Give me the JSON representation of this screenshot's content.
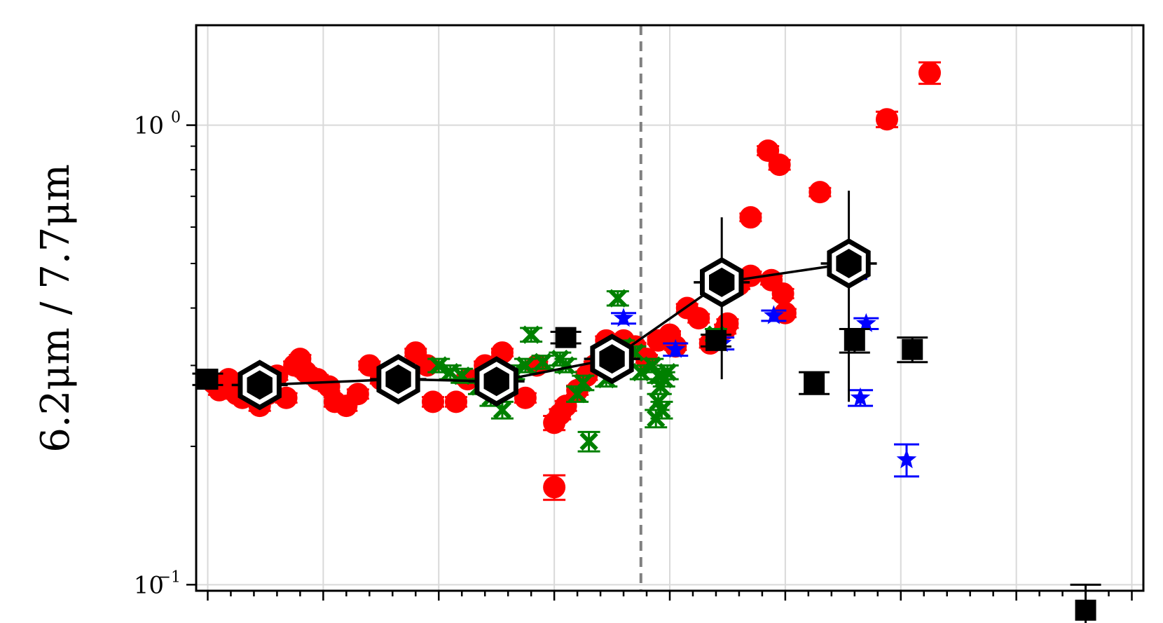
{
  "chart_data": {
    "type": "scatter",
    "title": "",
    "xlabel": "",
    "ylabel": "6.2μm / 7.7μm",
    "yscale": "log",
    "ylim": [
      0.097,
      1.65
    ],
    "xlim": [
      -0.1,
      8.1
    ],
    "grid": true,
    "legend": "none",
    "y_ticks": [
      {
        "value": 1.0,
        "base": "10",
        "exp": "0"
      },
      {
        "value": 0.1,
        "base": "10",
        "exp": "−1"
      }
    ],
    "x_major_ticks": [
      0,
      1,
      2,
      3,
      4,
      5,
      6,
      7,
      8
    ],
    "vertical_line": {
      "x": 3.75,
      "color": "#808080",
      "style": "dashed"
    },
    "colors": {
      "red": "#ff0000",
      "green": "#008000",
      "blue": "#0000ff",
      "black": "#000000"
    },
    "series": [
      {
        "marker": "circle",
        "color": "#ff0000",
        "points": [
          {
            "x": 0.05,
            "y": 0.275,
            "err": 0.006
          },
          {
            "x": 0.1,
            "y": 0.265,
            "err": 0.006
          },
          {
            "x": 0.18,
            "y": 0.28,
            "err": 0.006
          },
          {
            "x": 0.25,
            "y": 0.26,
            "err": 0.006
          },
          {
            "x": 0.3,
            "y": 0.255,
            "err": 0.006
          },
          {
            "x": 0.38,
            "y": 0.27,
            "err": 0.006
          },
          {
            "x": 0.45,
            "y": 0.245,
            "err": 0.006
          },
          {
            "x": 0.52,
            "y": 0.26,
            "err": 0.006
          },
          {
            "x": 0.6,
            "y": 0.285,
            "err": 0.006
          },
          {
            "x": 0.68,
            "y": 0.255,
            "err": 0.006
          },
          {
            "x": 0.75,
            "y": 0.3,
            "err": 0.006
          },
          {
            "x": 0.8,
            "y": 0.31,
            "err": 0.006
          },
          {
            "x": 0.85,
            "y": 0.29,
            "err": 0.006
          },
          {
            "x": 0.95,
            "y": 0.28,
            "err": 0.006
          },
          {
            "x": 1.05,
            "y": 0.27,
            "err": 0.006
          },
          {
            "x": 1.1,
            "y": 0.25,
            "err": 0.006
          },
          {
            "x": 1.2,
            "y": 0.245,
            "err": 0.006
          },
          {
            "x": 1.3,
            "y": 0.26,
            "err": 0.006
          },
          {
            "x": 1.4,
            "y": 0.3,
            "err": 0.006
          },
          {
            "x": 1.5,
            "y": 0.28,
            "err": 0.006
          },
          {
            "x": 1.8,
            "y": 0.32,
            "err": 0.006
          },
          {
            "x": 1.9,
            "y": 0.3,
            "err": 0.006
          },
          {
            "x": 1.95,
            "y": 0.25,
            "err": 0.006
          },
          {
            "x": 2.15,
            "y": 0.25,
            "err": 0.006
          },
          {
            "x": 2.25,
            "y": 0.28,
            "err": 0.006
          },
          {
            "x": 2.4,
            "y": 0.3,
            "err": 0.006
          },
          {
            "x": 2.55,
            "y": 0.32,
            "err": 0.006
          },
          {
            "x": 2.75,
            "y": 0.255,
            "err": 0.006
          },
          {
            "x": 2.85,
            "y": 0.3,
            "err": 0.006
          },
          {
            "x": 3.0,
            "y": 0.225,
            "err": 0.008
          },
          {
            "x": 3.05,
            "y": 0.235,
            "err": 0.006
          },
          {
            "x": 3.1,
            "y": 0.245,
            "err": 0.006
          },
          {
            "x": 3.2,
            "y": 0.265,
            "err": 0.006
          },
          {
            "x": 3.28,
            "y": 0.285,
            "err": 0.006
          },
          {
            "x": 3.35,
            "y": 0.3,
            "err": 0.006
          },
          {
            "x": 3.45,
            "y": 0.34,
            "err": 0.007
          },
          {
            "x": 3.55,
            "y": 0.32,
            "err": 0.006
          },
          {
            "x": 3.6,
            "y": 0.34,
            "err": 0.006
          },
          {
            "x": 3.7,
            "y": 0.33,
            "err": 0.006
          },
          {
            "x": 3.8,
            "y": 0.31,
            "err": 0.006
          },
          {
            "x": 3.9,
            "y": 0.34,
            "err": 0.006
          },
          {
            "x": 4.0,
            "y": 0.35,
            "err": 0.006
          },
          {
            "x": 4.05,
            "y": 0.33,
            "err": 0.006
          },
          {
            "x": 4.15,
            "y": 0.4,
            "err": 0.008
          },
          {
            "x": 4.25,
            "y": 0.38,
            "err": 0.008
          },
          {
            "x": 4.35,
            "y": 0.335,
            "err": 0.007
          },
          {
            "x": 4.48,
            "y": 0.36,
            "err": 0.008
          },
          {
            "x": 4.5,
            "y": 0.37,
            "err": 0.008
          },
          {
            "x": 4.6,
            "y": 0.45,
            "err": 0.01
          },
          {
            "x": 4.7,
            "y": 0.63,
            "err": 0.012
          },
          {
            "x": 4.7,
            "y": 0.47,
            "err": 0.01
          },
          {
            "x": 4.85,
            "y": 0.88,
            "err": 0.02
          },
          {
            "x": 4.88,
            "y": 0.46,
            "err": 0.01
          },
          {
            "x": 4.95,
            "y": 0.82,
            "err": 0.02
          },
          {
            "x": 4.98,
            "y": 0.43,
            "err": 0.01
          },
          {
            "x": 5.3,
            "y": 0.715,
            "err": 0.015
          },
          {
            "x": 5.0,
            "y": 0.39,
            "err": 0.008
          },
          {
            "x": 3.0,
            "y": 0.163,
            "err": 0.01
          },
          {
            "x": 5.88,
            "y": 1.03,
            "err": 0.04
          },
          {
            "x": 6.25,
            "y": 1.3,
            "err": 0.07
          }
        ]
      },
      {
        "marker": "x",
        "color": "#008000",
        "points": [
          {
            "x": 2.0,
            "y": 0.3,
            "err": 0.01
          },
          {
            "x": 2.1,
            "y": 0.29,
            "err": 0.01
          },
          {
            "x": 2.2,
            "y": 0.285,
            "err": 0.01
          },
          {
            "x": 2.35,
            "y": 0.27,
            "err": 0.01
          },
          {
            "x": 2.45,
            "y": 0.255,
            "err": 0.01
          },
          {
            "x": 2.55,
            "y": 0.24,
            "err": 0.01
          },
          {
            "x": 2.65,
            "y": 0.29,
            "err": 0.01
          },
          {
            "x": 2.75,
            "y": 0.3,
            "err": 0.01
          },
          {
            "x": 2.8,
            "y": 0.35,
            "err": 0.012
          },
          {
            "x": 2.9,
            "y": 0.305,
            "err": 0.01
          },
          {
            "x": 3.05,
            "y": 0.31,
            "err": 0.01
          },
          {
            "x": 3.1,
            "y": 0.3,
            "err": 0.01
          },
          {
            "x": 3.2,
            "y": 0.26,
            "err": 0.01
          },
          {
            "x": 3.25,
            "y": 0.275,
            "err": 0.01
          },
          {
            "x": 3.3,
            "y": 0.205,
            "err": 0.01
          },
          {
            "x": 3.45,
            "y": 0.28,
            "err": 0.01
          },
          {
            "x": 3.55,
            "y": 0.42,
            "err": 0.015
          },
          {
            "x": 3.6,
            "y": 0.33,
            "err": 0.01
          },
          {
            "x": 3.7,
            "y": 0.32,
            "err": 0.01
          },
          {
            "x": 3.75,
            "y": 0.29,
            "err": 0.01
          },
          {
            "x": 3.85,
            "y": 0.3,
            "err": 0.01
          },
          {
            "x": 3.9,
            "y": 0.285,
            "err": 0.01
          },
          {
            "x": 3.95,
            "y": 0.28,
            "err": 0.01
          },
          {
            "x": 3.92,
            "y": 0.27,
            "err": 0.01
          },
          {
            "x": 3.9,
            "y": 0.25,
            "err": 0.01
          },
          {
            "x": 3.93,
            "y": 0.24,
            "err": 0.01
          },
          {
            "x": 3.98,
            "y": 0.29,
            "err": 0.01
          },
          {
            "x": 3.88,
            "y": 0.23,
            "err": 0.01
          },
          {
            "x": 4.4,
            "y": 0.35,
            "err": 0.01
          }
        ]
      },
      {
        "marker": "star",
        "color": "#0000ff",
        "points": [
          {
            "x": 3.6,
            "y": 0.38,
            "err": 0.01
          },
          {
            "x": 4.05,
            "y": 0.325,
            "err": 0.01
          },
          {
            "x": 4.45,
            "y": 0.335,
            "err": 0.01
          },
          {
            "x": 4.9,
            "y": 0.385,
            "err": 0.01
          },
          {
            "x": 5.6,
            "y": 0.475,
            "err": 0.012
          },
          {
            "x": 5.7,
            "y": 0.37,
            "err": 0.01
          },
          {
            "x": 5.65,
            "y": 0.255,
            "err": 0.01
          },
          {
            "x": 6.05,
            "y": 0.187,
            "err": 0.015
          }
        ]
      },
      {
        "marker": "square",
        "color": "#000000",
        "points": [
          {
            "x": 0.0,
            "y": 0.28,
            "err": 0.008
          },
          {
            "x": 3.1,
            "y": 0.345,
            "err": 0.01
          },
          {
            "x": 4.4,
            "y": 0.34,
            "err": 0.01
          },
          {
            "x": 5.25,
            "y": 0.275,
            "err": 0.015
          },
          {
            "x": 5.6,
            "y": 0.34,
            "err": 0.02
          },
          {
            "x": 6.1,
            "y": 0.325,
            "err": 0.02
          },
          {
            "x": 7.6,
            "y": 0.088,
            "err": 0.012
          }
        ]
      },
      {
        "marker": "hexagon",
        "color": "#000000",
        "connected": true,
        "points": [
          {
            "x": 0.45,
            "y": 0.272,
            "err": 0.0
          },
          {
            "x": 1.65,
            "y": 0.28,
            "err": 0.0
          },
          {
            "x": 2.5,
            "y": 0.277,
            "err": 0.0
          },
          {
            "x": 3.5,
            "y": 0.31,
            "err": 0.0
          },
          {
            "x": 4.45,
            "y": 0.455,
            "err_low": 0.175,
            "err_high": 0.175
          },
          {
            "x": 5.55,
            "y": 0.5,
            "err_low": 0.25,
            "err_high": 0.22
          }
        ]
      }
    ]
  }
}
